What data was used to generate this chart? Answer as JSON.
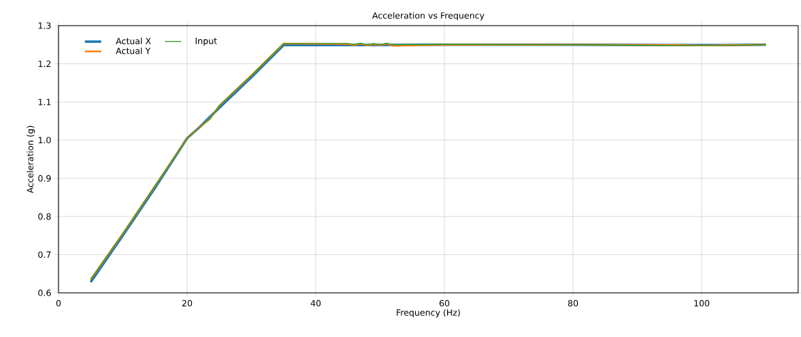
{
  "chart_data": {
    "type": "line",
    "title": "Acceleration vs Frequency",
    "xlabel": "Frequency (Hz)",
    "ylabel": "Acceleration (g)",
    "xlim": [
      0,
      115
    ],
    "ylim": [
      0.6,
      1.3
    ],
    "xticks": [
      0,
      20,
      40,
      60,
      80,
      100
    ],
    "yticks": [
      0.6,
      0.7,
      0.8,
      0.9,
      {
        "value": 1.0,
        "label": "1.0"
      },
      1.1,
      1.2,
      1.3
    ],
    "grid": true,
    "legend": "top left",
    "line_style": "solid",
    "series": [
      {
        "name": "Actual X",
        "color": "#1f77b4",
        "x": [
          5,
          10,
          15,
          20,
          22,
          23.5,
          25,
          30,
          35,
          45,
          60,
          80,
          95,
          100,
          110
        ],
        "values": [
          0.628,
          0.75,
          0.875,
          1.005,
          1.035,
          1.06,
          1.085,
          1.165,
          1.249,
          1.249,
          1.25,
          1.25,
          1.249,
          1.249,
          1.25
        ]
      },
      {
        "name": "Actual Y",
        "color": "#ff7f0e",
        "x": [
          5,
          10,
          15,
          20,
          22,
          23.5,
          25,
          30,
          35,
          45,
          46,
          47,
          48,
          49,
          50,
          51,
          52,
          60,
          80,
          96,
          100,
          110
        ],
        "values": [
          0.635,
          0.755,
          0.88,
          1.005,
          1.035,
          1.055,
          1.09,
          1.17,
          1.253,
          1.252,
          1.249,
          1.253,
          1.248,
          1.252,
          1.249,
          1.253,
          1.247,
          1.25,
          1.25,
          1.249,
          1.248,
          1.25
        ]
      },
      {
        "name": "Input",
        "color": "#2ca02c",
        "x": [
          5,
          10,
          15,
          20,
          22,
          23.5,
          25,
          30,
          35,
          45,
          46,
          47,
          48,
          49,
          50,
          51,
          52,
          60,
          80,
          96,
          100,
          104,
          110
        ],
        "values": [
          0.635,
          0.755,
          0.88,
          1.005,
          1.035,
          1.055,
          1.09,
          1.17,
          1.253,
          1.253,
          1.251,
          1.254,
          1.25,
          1.253,
          1.25,
          1.254,
          1.25,
          1.251,
          1.25,
          1.248,
          1.249,
          1.248,
          1.25
        ]
      }
    ]
  }
}
